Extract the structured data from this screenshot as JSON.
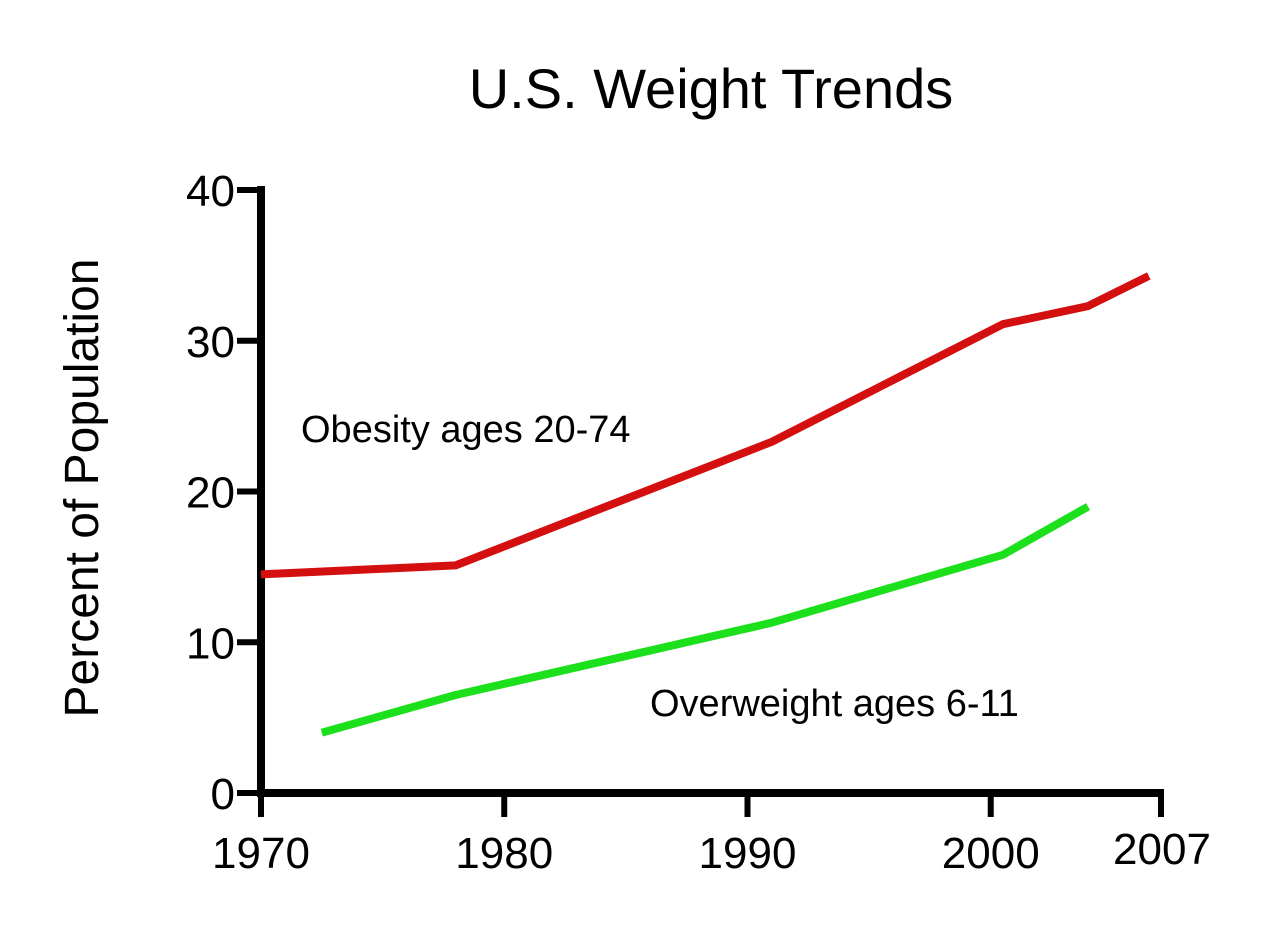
{
  "chart_data": {
    "type": "line",
    "title": "U.S. Weight Trends",
    "xlabel": "",
    "ylabel": "Percent of Population",
    "xlim": [
      1970,
      2007
    ],
    "ylim": [
      0,
      40
    ],
    "x_ticks": [
      1970,
      1980,
      1990,
      2000,
      2007
    ],
    "x_tick_labels": [
      "1970",
      "1980",
      "1990",
      "2000",
      "2007"
    ],
    "y_ticks": [
      0,
      10,
      20,
      30,
      40
    ],
    "y_tick_labels": [
      "0",
      "10",
      "20",
      "30",
      "40"
    ],
    "grid": false,
    "legend": "inline labels",
    "series": [
      {
        "name": "Obesity ages 20-74",
        "color": "#d40f0f",
        "x": [
          1970,
          1978,
          1991,
          2000.5,
          2004,
          2006.5
        ],
        "y": [
          14.5,
          15.1,
          23.3,
          31.1,
          32.3,
          34.3
        ]
      },
      {
        "name": "Overweight ages 6-11",
        "color": "#1be01b",
        "x": [
          1972.5,
          1978,
          1991,
          2000.5,
          2004
        ],
        "y": [
          4.0,
          6.5,
          11.3,
          15.8,
          19.0
        ]
      }
    ]
  }
}
